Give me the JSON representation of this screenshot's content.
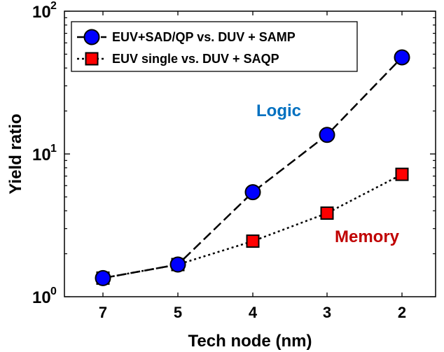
{
  "chart_data": {
    "type": "line",
    "xlabel": "Tech node (nm)",
    "ylabel": "Yield ratio",
    "x_tick_labels": [
      "7",
      "5",
      "4",
      "3",
      "2"
    ],
    "y_scale": "log",
    "ylim": [
      1,
      100
    ],
    "y_tick_labels": [
      {
        "base": "10",
        "exp": "0",
        "value": 1
      },
      {
        "base": "10",
        "exp": "1",
        "value": 10
      },
      {
        "base": "10",
        "exp": "2",
        "value": 100
      }
    ],
    "grid": false,
    "legend_position": "top-left",
    "series": [
      {
        "name": "EUV+SAD/QP vs. DUV + SAMP",
        "x": [
          "7",
          "5",
          "4",
          "3",
          "2"
        ],
        "values": [
          1.35,
          1.68,
          5.4,
          13.6,
          47.5
        ],
        "line_style": "dashed",
        "marker": "circle",
        "color": "#0000ff"
      },
      {
        "name": "EUV single vs. DUV + SAQP",
        "x": [
          "7",
          "5",
          "4",
          "3",
          "2"
        ],
        "values": [
          1.35,
          1.68,
          2.45,
          3.85,
          7.2
        ],
        "line_style": "dotted",
        "marker": "square",
        "color": "#ff0000"
      }
    ],
    "annotations": [
      {
        "text": "Logic",
        "color": "#0070c0"
      },
      {
        "text": "Memory",
        "color": "#c00000"
      }
    ]
  }
}
